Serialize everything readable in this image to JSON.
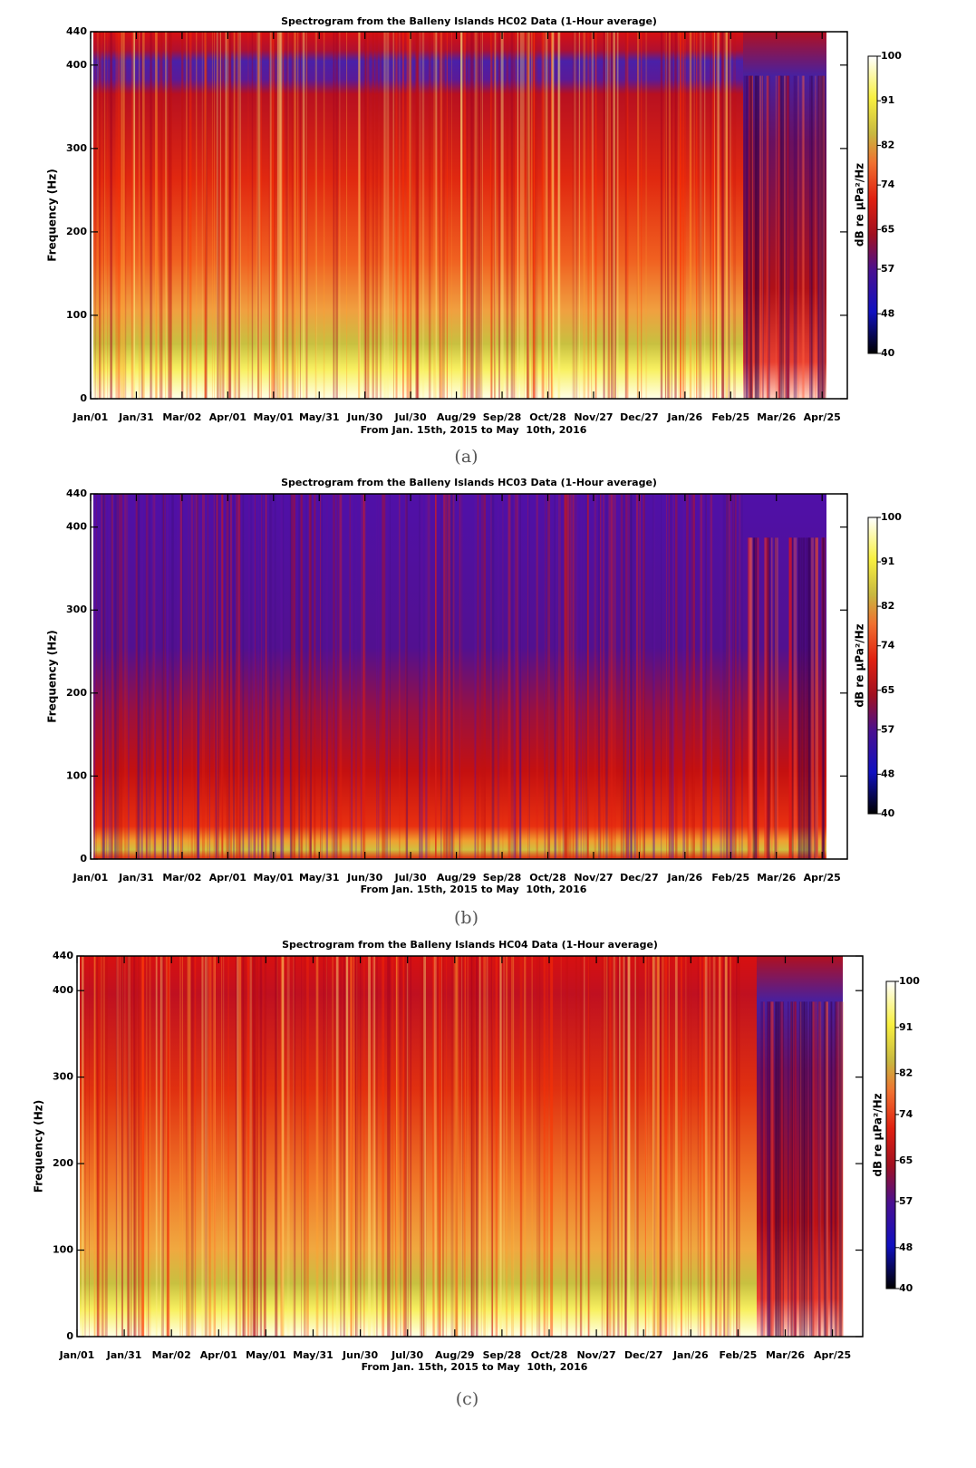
{
  "chart_data": [
    {
      "type": "heatmap",
      "title": "Spectrogram from the Balleny Islands HC02 Data (1-Hour average)",
      "x_label": "From Jan. 15th, 2015 to May  10th, 2016",
      "y_label": "Frequency (Hz)",
      "categories": [
        "Jan/01",
        "Jan/31",
        "Mar/02",
        "Apr/01",
        "May/01",
        "May/31",
        "Jun/30",
        "Jul/30",
        "Aug/29",
        "Sep/28",
        "Oct/28",
        "Nov/27",
        "Dec/27",
        "Jan/26",
        "Feb/25",
        "Mar/26",
        "Apr/25"
      ],
      "ylim": [
        0,
        440
      ],
      "yticks": [
        0,
        100,
        200,
        300,
        400,
        440
      ],
      "colorbar": {
        "label": "dB re μPa²/Hz",
        "lim": [
          40,
          100
        ],
        "ticks": [
          40,
          48,
          57,
          65,
          74,
          82,
          91,
          100
        ]
      },
      "caption": "(a)"
    },
    {
      "type": "heatmap",
      "title": "Spectrogram from the Balleny Islands HC03 Data (1-Hour average)",
      "x_label": "From Jan. 15th, 2015 to May  10th, 2016",
      "y_label": "Frequency (Hz)",
      "categories": [
        "Jan/01",
        "Jan/31",
        "Mar/02",
        "Apr/01",
        "May/01",
        "May/31",
        "Jun/30",
        "Jul/30",
        "Aug/29",
        "Sep/28",
        "Oct/28",
        "Nov/27",
        "Dec/27",
        "Jan/26",
        "Feb/25",
        "Mar/26",
        "Apr/25"
      ],
      "ylim": [
        0,
        440
      ],
      "yticks": [
        0,
        100,
        200,
        300,
        400,
        440
      ],
      "colorbar": {
        "label": "dB re μPa²/Hz",
        "lim": [
          40,
          100
        ],
        "ticks": [
          40,
          48,
          57,
          65,
          74,
          82,
          91,
          100
        ]
      },
      "caption": "(b)"
    },
    {
      "type": "heatmap",
      "title": "Spectrogram from the Balleny Islands HC04 Data (1-Hour average)",
      "x_label": "From Jan. 15th, 2015 to May  10th, 2016",
      "y_label": "Frequency (Hz)",
      "categories": [
        "Jan/01",
        "Jan/31",
        "Mar/02",
        "Apr/01",
        "May/01",
        "May/31",
        "Jun/30",
        "Jul/30",
        "Aug/29",
        "Sep/28",
        "Oct/28",
        "Nov/27",
        "Dec/27",
        "Jan/26",
        "Feb/25",
        "Mar/26",
        "Apr/25"
      ],
      "ylim": [
        0,
        440
      ],
      "yticks": [
        0,
        100,
        200,
        300,
        400,
        440
      ],
      "colorbar": {
        "label": "dB re μPa²/Hz",
        "lim": [
          40,
          100
        ],
        "ticks": [
          40,
          48,
          57,
          65,
          74,
          82,
          91,
          100
        ]
      },
      "caption": "(c)"
    }
  ]
}
